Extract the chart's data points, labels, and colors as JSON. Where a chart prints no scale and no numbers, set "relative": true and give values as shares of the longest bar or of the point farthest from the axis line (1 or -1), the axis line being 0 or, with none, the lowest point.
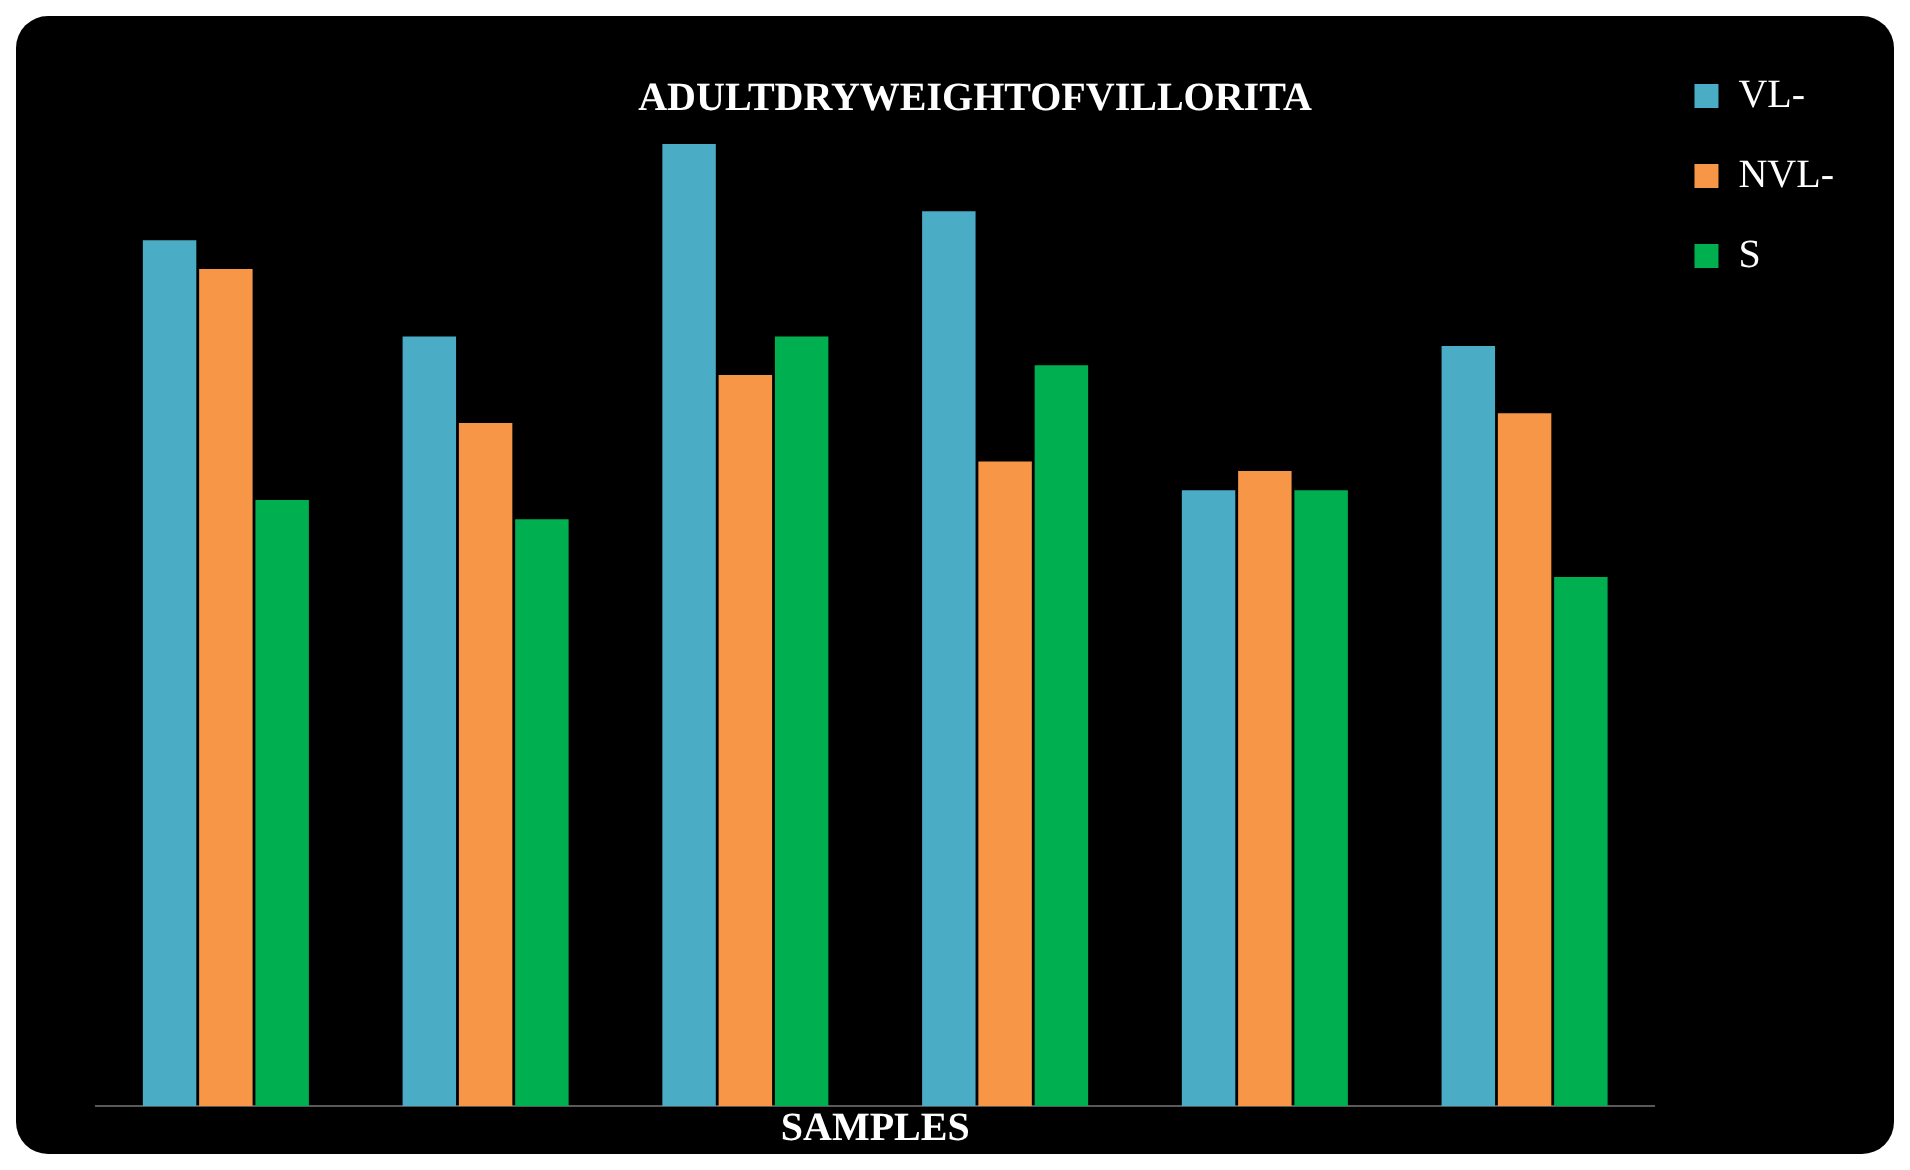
{
  "chart_data": {
    "type": "bar",
    "title": "ADULTDRYWEIGHTOFVILLORITA",
    "xlabel": "SAMPLES",
    "relative": true,
    "legend": "top right",
    "categories": [
      null,
      null,
      null,
      null,
      null,
      null
    ],
    "series": [
      {
        "name": "VL-",
        "color": "#4bacc6",
        "values": [
          0.9,
          0.8,
          1,
          0.93,
          0.64,
          0.79
        ]
      },
      {
        "name": "NVL-",
        "color": "#f79646",
        "values": [
          0.87,
          0.71,
          0.76,
          0.67,
          0.66,
          0.72
        ]
      },
      {
        "name": "S",
        "color": "#00b050",
        "values": [
          0.63,
          0.61,
          0.8,
          0.77,
          0.64,
          0.55
        ]
      }
    ]
  }
}
